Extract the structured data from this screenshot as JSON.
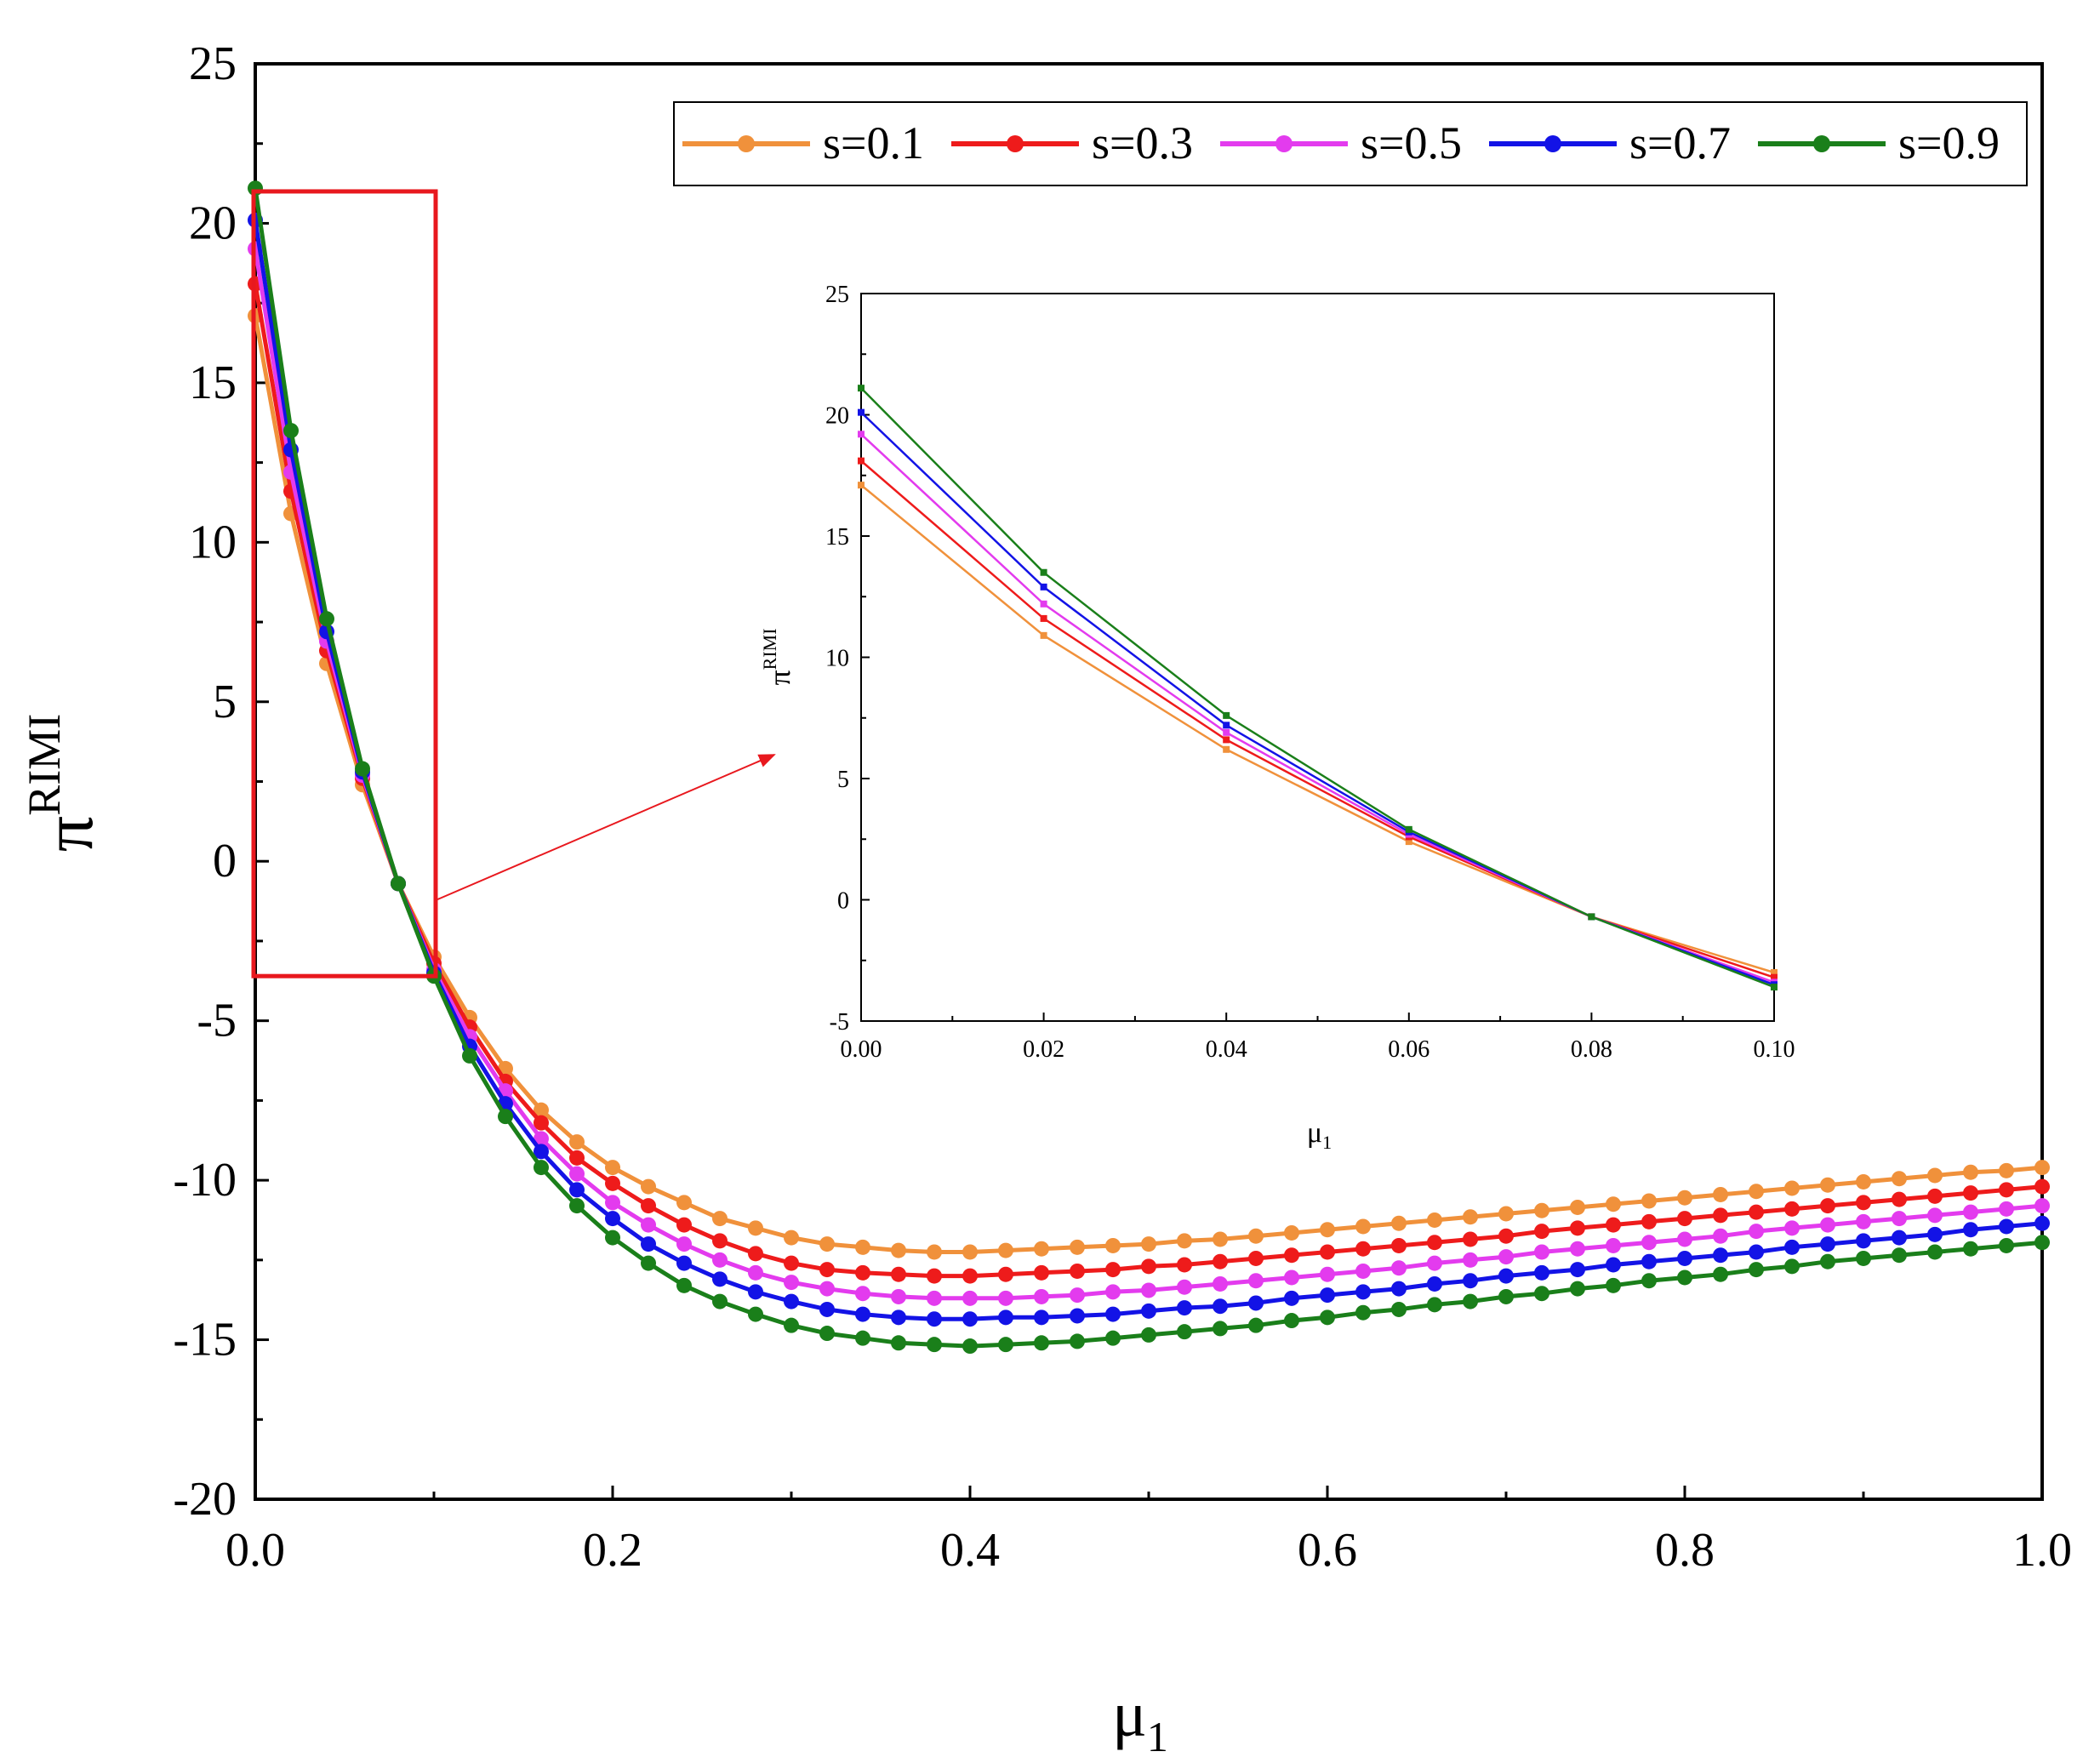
{
  "chart_data": [
    {
      "type": "line",
      "role": "main",
      "xlabel": "μ",
      "xlabel_sub": "1",
      "ylabel": "π",
      "ylabel_sup": "RIMI",
      "xlim": [
        0,
        1
      ],
      "ylim": [
        -20,
        25
      ],
      "xticks": [
        0,
        0.2,
        0.4,
        0.6,
        0.8,
        1.0
      ],
      "xtick_labels": [
        "0.0",
        "0.2",
        "0.4",
        "0.6",
        "0.8",
        "1.0"
      ],
      "yticks": [
        -20,
        -15,
        -10,
        -5,
        0,
        5,
        10,
        15,
        20,
        25
      ],
      "ytick_labels": [
        "-20",
        "-15",
        "-10",
        "-5",
        "0",
        "5",
        "10",
        "15",
        "20",
        "25"
      ],
      "legend_position": "top-right",
      "markers": true,
      "x": [
        0,
        0.02,
        0.04,
        0.06,
        0.08,
        0.1,
        0.12,
        0.14,
        0.16,
        0.18,
        0.2,
        0.22,
        0.24,
        0.26,
        0.28,
        0.3,
        0.32,
        0.34,
        0.36,
        0.38,
        0.4,
        0.42,
        0.44,
        0.46,
        0.48,
        0.5,
        0.52,
        0.54,
        0.56,
        0.58,
        0.6,
        0.62,
        0.64,
        0.66,
        0.68,
        0.7,
        0.72,
        0.74,
        0.76,
        0.78,
        0.8,
        0.82,
        0.84,
        0.86,
        0.88,
        0.9,
        0.92,
        0.94,
        0.96,
        0.98,
        1.0
      ],
      "series": [
        {
          "name": "s=0.1",
          "color": "#F0913B",
          "values": [
            17.1,
            10.9,
            6.2,
            2.4,
            -0.7,
            -3.0,
            -4.9,
            -6.5,
            -7.8,
            -8.8,
            -9.6,
            -10.2,
            -10.7,
            -11.2,
            -11.5,
            -11.8,
            -12.0,
            -12.1,
            -12.2,
            -12.25,
            -12.25,
            -12.2,
            -12.15,
            -12.1,
            -12.05,
            -12.0,
            -11.9,
            -11.85,
            -11.75,
            -11.65,
            -11.55,
            -11.45,
            -11.35,
            -11.25,
            -11.15,
            -11.05,
            -10.95,
            -10.85,
            -10.75,
            -10.65,
            -10.55,
            -10.45,
            -10.35,
            -10.25,
            -10.15,
            -10.05,
            -9.95,
            -9.85,
            -9.75,
            -9.7,
            -9.6
          ]
        },
        {
          "name": "s=0.3",
          "color": "#EE1B1B",
          "values": [
            18.1,
            11.6,
            6.6,
            2.6,
            -0.7,
            -3.2,
            -5.2,
            -6.9,
            -8.2,
            -9.3,
            -10.1,
            -10.8,
            -11.4,
            -11.9,
            -12.3,
            -12.6,
            -12.8,
            -12.9,
            -12.95,
            -13.0,
            -13.0,
            -12.95,
            -12.9,
            -12.85,
            -12.8,
            -12.7,
            -12.65,
            -12.55,
            -12.45,
            -12.35,
            -12.25,
            -12.15,
            -12.05,
            -11.95,
            -11.85,
            -11.75,
            -11.6,
            -11.5,
            -11.4,
            -11.3,
            -11.2,
            -11.1,
            -11.0,
            -10.9,
            -10.8,
            -10.7,
            -10.6,
            -10.5,
            -10.4,
            -10.3,
            -10.2
          ]
        },
        {
          "name": "s=0.5",
          "color": "#E33BEE",
          "values": [
            19.2,
            12.2,
            6.9,
            2.7,
            -0.7,
            -3.4,
            -5.5,
            -7.2,
            -8.7,
            -9.8,
            -10.7,
            -11.4,
            -12.0,
            -12.5,
            -12.9,
            -13.2,
            -13.4,
            -13.55,
            -13.65,
            -13.7,
            -13.7,
            -13.7,
            -13.65,
            -13.6,
            -13.5,
            -13.45,
            -13.35,
            -13.25,
            -13.15,
            -13.05,
            -12.95,
            -12.85,
            -12.75,
            -12.6,
            -12.5,
            -12.4,
            -12.25,
            -12.15,
            -12.05,
            -11.95,
            -11.85,
            -11.75,
            -11.6,
            -11.5,
            -11.4,
            -11.3,
            -11.2,
            -11.1,
            -11.0,
            -10.9,
            -10.8
          ]
        },
        {
          "name": "s=0.7",
          "color": "#1313E6",
          "values": [
            20.1,
            12.9,
            7.2,
            2.8,
            -0.7,
            -3.5,
            -5.8,
            -7.6,
            -9.1,
            -10.3,
            -11.2,
            -12.0,
            -12.6,
            -13.1,
            -13.5,
            -13.8,
            -14.05,
            -14.2,
            -14.3,
            -14.35,
            -14.35,
            -14.3,
            -14.3,
            -14.25,
            -14.2,
            -14.1,
            -14.0,
            -13.95,
            -13.85,
            -13.7,
            -13.6,
            -13.5,
            -13.4,
            -13.25,
            -13.15,
            -13.0,
            -12.9,
            -12.8,
            -12.65,
            -12.55,
            -12.45,
            -12.35,
            -12.25,
            -12.1,
            -12.0,
            -11.9,
            -11.8,
            -11.7,
            -11.55,
            -11.45,
            -11.35
          ]
        },
        {
          "name": "s=0.9",
          "color": "#1A7F1A",
          "values": [
            21.1,
            13.5,
            7.6,
            2.9,
            -0.7,
            -3.6,
            -6.1,
            -8.0,
            -9.6,
            -10.8,
            -11.8,
            -12.6,
            -13.3,
            -13.8,
            -14.2,
            -14.55,
            -14.8,
            -14.95,
            -15.1,
            -15.15,
            -15.2,
            -15.15,
            -15.1,
            -15.05,
            -14.95,
            -14.85,
            -14.75,
            -14.65,
            -14.55,
            -14.4,
            -14.3,
            -14.15,
            -14.05,
            -13.9,
            -13.8,
            -13.65,
            -13.55,
            -13.4,
            -13.3,
            -13.15,
            -13.05,
            -12.95,
            -12.8,
            -12.7,
            -12.55,
            -12.45,
            -12.35,
            -12.25,
            -12.15,
            -12.05,
            -11.95
          ]
        }
      ],
      "highlight_box": {
        "x_range": [
          0,
          0.1
        ],
        "y_range": [
          -3.6,
          21
        ]
      }
    },
    {
      "type": "line",
      "role": "inset",
      "xlabel": "μ",
      "xlabel_sub": "1",
      "ylabel": "π",
      "ylabel_sup": "RIMI",
      "xlim": [
        0,
        0.1
      ],
      "ylim": [
        -5,
        25
      ],
      "xticks": [
        0,
        0.02,
        0.04,
        0.06,
        0.08,
        0.1
      ],
      "xtick_labels": [
        "0.00",
        "0.02",
        "0.04",
        "0.06",
        "0.08",
        "0.10"
      ],
      "yticks": [
        -5,
        0,
        5,
        10,
        15,
        20,
        25
      ],
      "ytick_labels": [
        "-5",
        "0",
        "5",
        "10",
        "15",
        "20",
        "25"
      ],
      "markers": true,
      "x": [
        0,
        0.02,
        0.04,
        0.06,
        0.08,
        0.1
      ],
      "series": [
        {
          "name": "s=0.1",
          "color": "#F0913B",
          "values": [
            17.1,
            10.9,
            6.2,
            2.4,
            -0.7,
            -3.0
          ]
        },
        {
          "name": "s=0.3",
          "color": "#EE1B1B",
          "values": [
            18.1,
            11.6,
            6.6,
            2.6,
            -0.7,
            -3.2
          ]
        },
        {
          "name": "s=0.5",
          "color": "#E33BEE",
          "values": [
            19.2,
            12.2,
            6.9,
            2.7,
            -0.7,
            -3.4
          ]
        },
        {
          "name": "s=0.7",
          "color": "#1313E6",
          "values": [
            20.1,
            12.9,
            7.2,
            2.8,
            -0.7,
            -3.5
          ]
        },
        {
          "name": "s=0.9",
          "color": "#1A7F1A",
          "values": [
            21.1,
            13.5,
            7.6,
            2.9,
            -0.7,
            -3.6
          ]
        }
      ]
    }
  ]
}
